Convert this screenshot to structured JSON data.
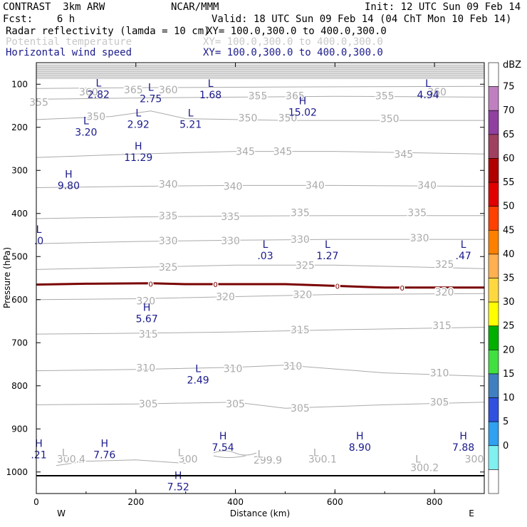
{
  "header": {
    "model": "CONTRAST  3km ARW",
    "org": "NCAR/MMM",
    "init": "Init: 12 UTC Sun 09 Feb 14",
    "fcst": "Fcst:    6 h",
    "valid": "Valid: 18 UTC Sun 09 Feb 14 (04 ChT Mon 10 Feb 14)",
    "field1_name": "Radar reflectivity (lamda = 10 cm)",
    "field1_xy": "XY= 100.0,300.0 to 400.0,300.0",
    "field2_name": "Potential temperature",
    "field2_xy": "XY= 100.0,300.0 to 400.0,300.0",
    "field3_name": "Horizontal wind speed",
    "field3_xy": "XY= 100.0,300.0 to 400.0,300.0"
  },
  "colors": {
    "theta": "#aaaaaa",
    "wind": "#1a1a8c",
    "reflect_line": "#7a0000",
    "field2_header": "#c8c8c8",
    "field3_header": "#1a1a8c"
  },
  "chart_data": {
    "type": "cross-section",
    "xlabel": "Distance (km)",
    "ylabel": "Pressure (hPa)",
    "xlim": [
      0,
      900
    ],
    "ylim": [
      1050,
      50
    ],
    "x_ticks": [
      "0",
      "200",
      "400",
      "600",
      "800"
    ],
    "y_ticks": [
      "100",
      "200",
      "300",
      "400",
      "500",
      "600",
      "700",
      "800",
      "900",
      "1000"
    ],
    "west_label": "W",
    "east_label": "E",
    "colorbar": {
      "unit": "dBZ",
      "labels": [
        "75",
        "70",
        "65",
        "60",
        "55",
        "50",
        "45",
        "40",
        "35",
        "30",
        "25",
        "20",
        "15",
        "10",
        "5",
        "0"
      ],
      "colors": [
        "#ffffff",
        "#c080c0",
        "#9040a0",
        "#a04060",
        "#b00000",
        "#e00000",
        "#ff4000",
        "#ff8000",
        "#ffb050",
        "#ffd840",
        "#ffff00",
        "#00b000",
        "#40e040",
        "#4080c0",
        "#3050e0",
        "#30a0f0",
        "#80f0f0",
        "#ffffff"
      ]
    },
    "theta_contours": [
      {
        "value": "360",
        "x": [
          0,
          200,
          400,
          600,
          900
        ],
        "p": [
          110,
          108,
          107,
          106,
          105
        ]
      },
      {
        "value": "355",
        "x": [
          0,
          200,
          400,
          600,
          900
        ],
        "p": [
          135,
          132,
          130,
          128,
          130
        ]
      },
      {
        "value": "350",
        "x": [
          0,
          150,
          230,
          300,
          500,
          900
        ],
        "p": [
          182,
          175,
          162,
          180,
          184,
          184
        ]
      },
      {
        "value": "345",
        "x": [
          0,
          200,
          400,
          600,
          900
        ],
        "p": [
          270,
          262,
          256,
          256,
          262
        ]
      },
      {
        "value": "340",
        "x": [
          0,
          200,
          400,
          600,
          900
        ],
        "p": [
          340,
          337,
          335,
          335,
          337
        ]
      },
      {
        "value": "335",
        "x": [
          0,
          200,
          400,
          600,
          900
        ],
        "p": [
          412,
          408,
          406,
          405,
          405
        ]
      },
      {
        "value": "330",
        "x": [
          0,
          200,
          400,
          600,
          900
        ],
        "p": [
          470,
          465,
          462,
          460,
          460
        ]
      },
      {
        "value": "325",
        "x": [
          0,
          200,
          400,
          600,
          900
        ],
        "p": [
          530,
          525,
          520,
          520,
          528
        ]
      },
      {
        "value": "320",
        "x": [
          0,
          200,
          400,
          600,
          900
        ],
        "p": [
          600,
          598,
          593,
          588,
          586
        ]
      },
      {
        "value": "315",
        "x": [
          0,
          200,
          400,
          600,
          900
        ],
        "p": [
          680,
          678,
          675,
          670,
          664
        ]
      },
      {
        "value": "310",
        "x": [
          0,
          200,
          400,
          500,
          700,
          900
        ],
        "p": [
          765,
          762,
          757,
          752,
          770,
          778
        ]
      },
      {
        "value": "305",
        "x": [
          0,
          200,
          400,
          500,
          700,
          900
        ],
        "p": [
          844,
          842,
          838,
          852,
          844,
          838
        ]
      },
      {
        "value": "300",
        "x": [
          40,
          100,
          200,
          300
        ],
        "p": [
          985,
          975,
          972,
          980
        ]
      }
    ],
    "theta_labels": [
      {
        "text": "360",
        "x": 105,
        "p": 118
      },
      {
        "text": "365",
        "x": 195,
        "p": 113
      },
      {
        "text": "360",
        "x": 265,
        "p": 113
      },
      {
        "text": "355",
        "x": 5,
        "p": 142
      },
      {
        "text": "355",
        "x": 445,
        "p": 127
      },
      {
        "text": "365",
        "x": 520,
        "p": 127
      },
      {
        "text": "355",
        "x": 700,
        "p": 127
      },
      {
        "text": "360",
        "x": 805,
        "p": 118
      },
      {
        "text": "350",
        "x": 120,
        "p": 175
      },
      {
        "text": "350",
        "x": 425,
        "p": 178
      },
      {
        "text": "350",
        "x": 505,
        "p": 178
      },
      {
        "text": "350",
        "x": 710,
        "p": 180
      },
      {
        "text": "345",
        "x": 420,
        "p": 256
      },
      {
        "text": "345",
        "x": 495,
        "p": 256
      },
      {
        "text": "345",
        "x": 738,
        "p": 262
      },
      {
        "text": "340",
        "x": 265,
        "p": 332
      },
      {
        "text": "340",
        "x": 395,
        "p": 337
      },
      {
        "text": "340",
        "x": 560,
        "p": 334
      },
      {
        "text": "340",
        "x": 785,
        "p": 334
      },
      {
        "text": "335",
        "x": 265,
        "p": 405
      },
      {
        "text": "335",
        "x": 390,
        "p": 407
      },
      {
        "text": "335",
        "x": 530,
        "p": 398
      },
      {
        "text": "335",
        "x": 765,
        "p": 398
      },
      {
        "text": "330",
        "x": 265,
        "p": 463
      },
      {
        "text": "330",
        "x": 390,
        "p": 463
      },
      {
        "text": "330",
        "x": 530,
        "p": 460
      },
      {
        "text": "330",
        "x": 770,
        "p": 457
      },
      {
        "text": "325",
        "x": 265,
        "p": 524
      },
      {
        "text": "325",
        "x": 540,
        "p": 520
      },
      {
        "text": "325",
        "x": 820,
        "p": 518
      },
      {
        "text": "320",
        "x": 220,
        "p": 603
      },
      {
        "text": "320",
        "x": 380,
        "p": 593
      },
      {
        "text": "320",
        "x": 535,
        "p": 588
      },
      {
        "text": "320",
        "x": 820,
        "p": 582
      },
      {
        "text": "315",
        "x": 225,
        "p": 680
      },
      {
        "text": "315",
        "x": 530,
        "p": 670
      },
      {
        "text": "315",
        "x": 815,
        "p": 660
      },
      {
        "text": "310",
        "x": 220,
        "p": 758
      },
      {
        "text": "310",
        "x": 395,
        "p": 760
      },
      {
        "text": "310",
        "x": 515,
        "p": 754
      },
      {
        "text": "310",
        "x": 810,
        "p": 770
      },
      {
        "text": "305",
        "x": 225,
        "p": 842
      },
      {
        "text": "305",
        "x": 400,
        "p": 842
      },
      {
        "text": "305",
        "x": 530,
        "p": 852
      },
      {
        "text": "305",
        "x": 810,
        "p": 838
      },
      {
        "text": "300.4",
        "x": 70,
        "p": 970
      },
      {
        "text": "300",
        "x": 305,
        "p": 970
      },
      {
        "text": "299.9",
        "x": 465,
        "p": 972
      },
      {
        "text": "300.1",
        "x": 575,
        "p": 970
      },
      {
        "text": "300.2",
        "x": 780,
        "p": 990
      },
      {
        "text": "300",
        "x": 880,
        "p": 970
      },
      {
        "text": "L",
        "x": 57,
        "p": 955
      },
      {
        "text": "L",
        "x": 290,
        "p": 955
      },
      {
        "text": "L",
        "x": 450,
        "p": 958
      },
      {
        "text": "L",
        "x": 562,
        "p": 955
      },
      {
        "text": "L",
        "x": 767,
        "p": 970
      }
    ],
    "reflect_contour": {
      "value": "0",
      "x": [
        0,
        100,
        230,
        300,
        500,
        600,
        700,
        900
      ],
      "p": [
        565,
        563,
        562,
        564,
        564,
        568,
        572,
        572
      ]
    },
    "reflect_labels": [
      {
        "text": "0",
        "x": 230,
        "p": 563
      },
      {
        "text": "0",
        "x": 360,
        "p": 564
      },
      {
        "text": "0",
        "x": 605,
        "p": 568
      },
      {
        "text": "0",
        "x": 735,
        "p": 572
      }
    ],
    "wind_extrema": [
      {
        "type": "L",
        "value": "2.82",
        "x": 125,
        "p": 105
      },
      {
        "type": "L",
        "value": "2.75",
        "x": 230,
        "p": 115
      },
      {
        "type": "L",
        "value": "1.68",
        "x": 350,
        "p": 106
      },
      {
        "type": "L",
        "value": "4.94",
        "x": 787,
        "p": 106
      },
      {
        "type": "H",
        "value": "15.02",
        "x": 535,
        "p": 147
      },
      {
        "type": "L",
        "value": "3.20",
        "x": 100,
        "p": 193
      },
      {
        "type": "L",
        "value": "2.92",
        "x": 205,
        "p": 175
      },
      {
        "type": "L",
        "value": "5.21",
        "x": 310,
        "p": 175
      },
      {
        "type": "H",
        "value": "11.29",
        "x": 205,
        "p": 252
      },
      {
        "type": "H",
        "value": "9.80",
        "x": 65,
        "p": 317
      },
      {
        "type": "L",
        "value": ".0",
        "x": 5,
        "p": 445
      },
      {
        "type": "L",
        "value": ".03",
        "x": 460,
        "p": 480
      },
      {
        "type": "L",
        "value": "1.27",
        "x": 585,
        "p": 480
      },
      {
        "type": "L",
        "value": ".47",
        "x": 858,
        "p": 480
      },
      {
        "type": "H",
        "value": "5.67",
        "x": 222,
        "p": 626
      },
      {
        "type": "L",
        "value": "2.49",
        "x": 325,
        "p": 768
      },
      {
        "type": "H",
        "value": "7.54",
        "x": 375,
        "p": 924
      },
      {
        "type": "H",
        "value": "8.90",
        "x": 650,
        "p": 924
      },
      {
        "type": "H",
        "value": "7.88",
        "x": 858,
        "p": 924
      },
      {
        "type": "H",
        "value": "7.76",
        "x": 137,
        "p": 942
      },
      {
        "type": "H",
        "value": ".21",
        "x": 5,
        "p": 942
      },
      {
        "type": "H",
        "value": "7.52",
        "x": 285,
        "p": 1016
      }
    ]
  }
}
